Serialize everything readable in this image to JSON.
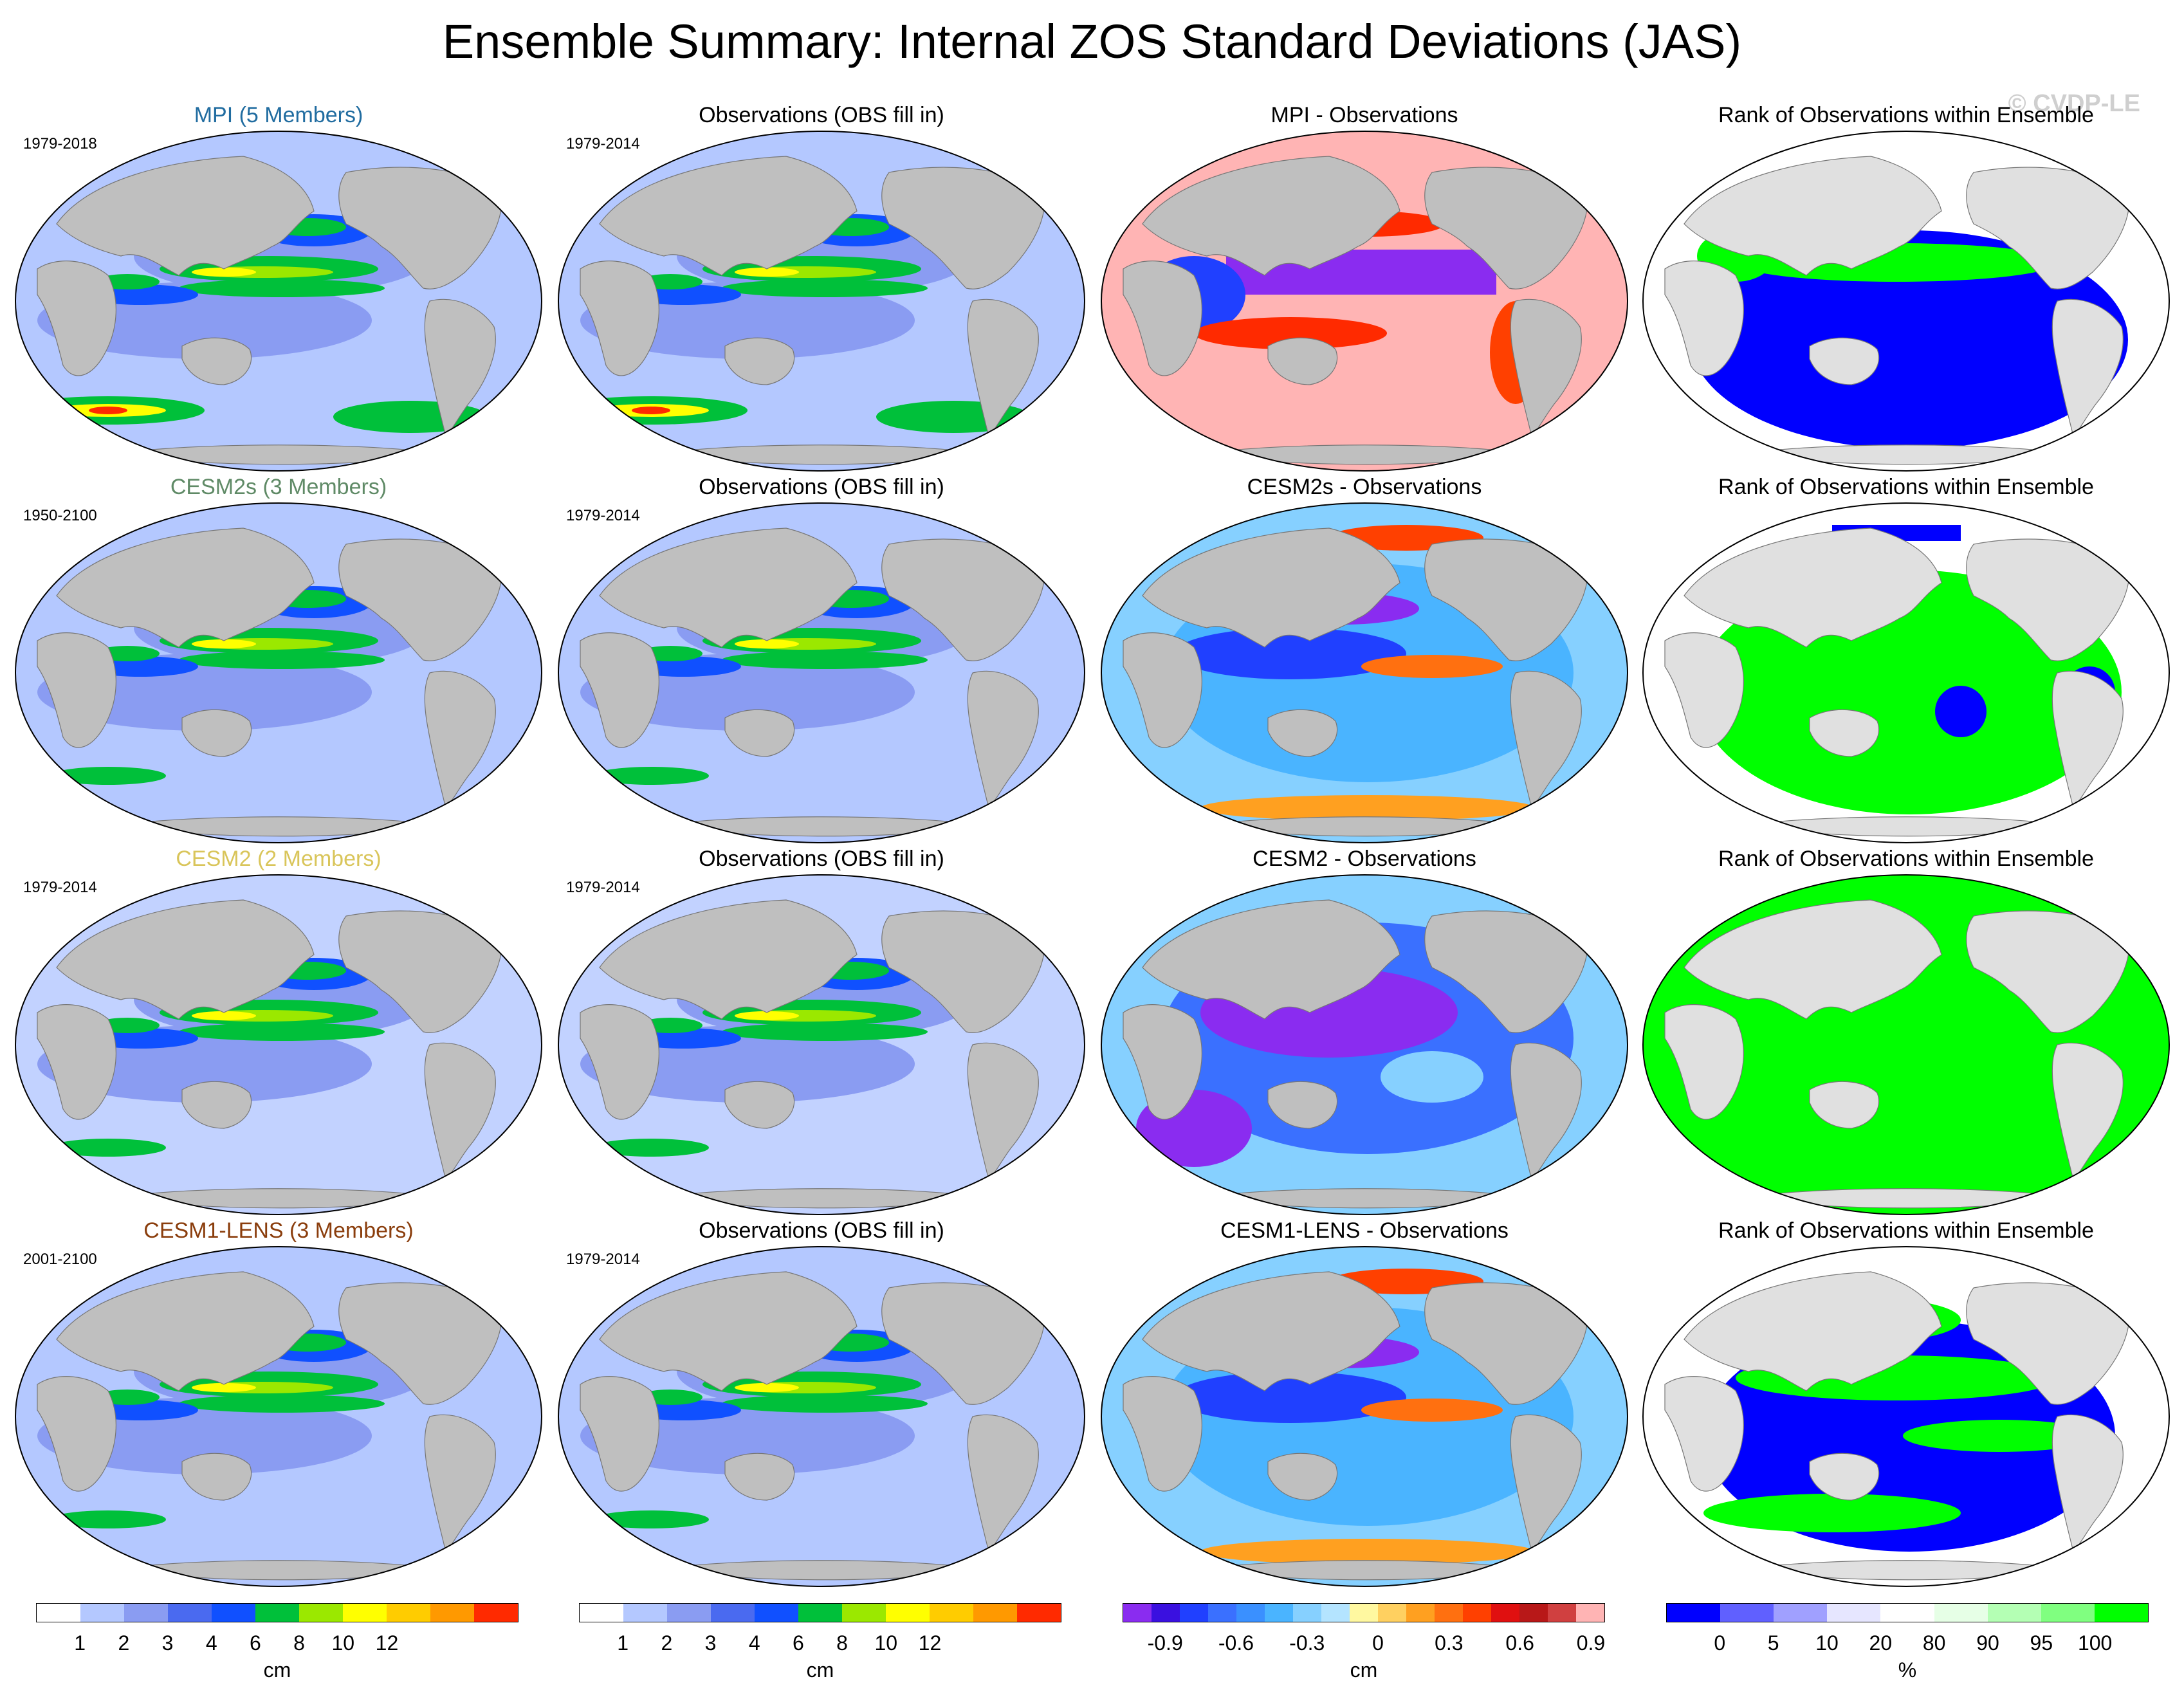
{
  "title": "Ensemble Summary: Internal ZOS Standard Deviations (JAS)",
  "watermark": "© CVDP-LE",
  "colors": {
    "land": "#bfbfbf",
    "ocean_low": "#b4c8ff",
    "ocean_mid": "#8a9cf2",
    "green": "#00c03a",
    "yellow_green": "#9be800",
    "yellow": "#ffff00",
    "red": "#ff2a00",
    "purple": "#8a2cf0",
    "pink": "#ffb4b4",
    "rank_blue": "#0000ff",
    "rank_green": "#00ff00",
    "rank_land": "#e0e0e0"
  },
  "rows": [
    {
      "model": {
        "title": "MPI (5 Members)",
        "color": "#206ca0",
        "period": "1979-2018"
      },
      "obs": {
        "title": "Observations (OBS fill in)",
        "period": "1979-2014"
      },
      "diff": {
        "title": "MPI - Observations"
      },
      "rank": {
        "title": "Rank of Observations within Ensemble"
      }
    },
    {
      "model": {
        "title": "CESM2s (3 Members)",
        "color": "#5f8a66",
        "period": "1950-2100"
      },
      "obs": {
        "title": "Observations (OBS fill in)",
        "period": "1979-2014"
      },
      "diff": {
        "title": "CESM2s - Observations"
      },
      "rank": {
        "title": "Rank of Observations within Ensemble"
      }
    },
    {
      "model": {
        "title": "CESM2 (2 Members)",
        "color": "#d9c55a",
        "period": "1979-2014"
      },
      "obs": {
        "title": "Observations (OBS fill in)",
        "period": "1979-2014"
      },
      "diff": {
        "title": "CESM2 - Observations"
      },
      "rank": {
        "title": "Rank of Observations within Ensemble"
      }
    },
    {
      "model": {
        "title": "CESM1-LENS (3 Members)",
        "color": "#8a3d0c",
        "period": "2001-2100"
      },
      "obs": {
        "title": "Observations (OBS fill in)",
        "period": "1979-2014"
      },
      "diff": {
        "title": "CESM1-LENS - Observations"
      },
      "rank": {
        "title": "Rank of Observations within Ensemble"
      }
    }
  ],
  "colorbars": [
    {
      "unit": "cm",
      "colors": [
        "#ffffff",
        "#b4c8ff",
        "#8a9cf2",
        "#4a6af0",
        "#1050ff",
        "#00c03a",
        "#9be800",
        "#ffff00",
        "#ffcc00",
        "#ff9900",
        "#ff2a00"
      ],
      "ticks": [
        "1",
        "2",
        "3",
        "4",
        "6",
        "8",
        "10",
        "12"
      ]
    },
    {
      "unit": "cm",
      "colors": [
        "#ffffff",
        "#b4c8ff",
        "#8a9cf2",
        "#4a6af0",
        "#1050ff",
        "#00c03a",
        "#9be800",
        "#ffff00",
        "#ffcc00",
        "#ff9900",
        "#ff2a00"
      ],
      "ticks": [
        "1",
        "2",
        "3",
        "4",
        "6",
        "8",
        "10",
        "12"
      ]
    },
    {
      "unit": "cm",
      "colors": [
        "#8a2cf0",
        "#3a10e0",
        "#2040ff",
        "#3a70ff",
        "#3a90ff",
        "#4ab4ff",
        "#86d0ff",
        "#b4e4ff",
        "#fff8a0",
        "#ffd060",
        "#ffa020",
        "#ff7010",
        "#ff4000",
        "#e01010",
        "#b81818",
        "#d04040",
        "#ffb4b4"
      ],
      "ticks": [
        "-0.9",
        "-0.6",
        "-0.3",
        "0",
        "0.3",
        "0.6",
        "0.9"
      ]
    },
    {
      "unit": "%",
      "colors": [
        "#0000ff",
        "#6060ff",
        "#a0a0ff",
        "#e6e6ff",
        "#ffffff",
        "#e6ffe6",
        "#b4ffb4",
        "#80ff80",
        "#00ff00"
      ],
      "ticks": [
        "0",
        "5",
        "10",
        "20",
        "80",
        "90",
        "95",
        "100"
      ]
    }
  ]
}
